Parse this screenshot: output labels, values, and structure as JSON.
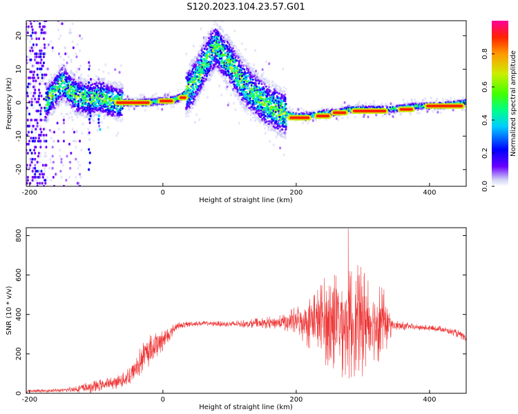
{
  "title": "S120.2023.104.23.57.G01",
  "chart_data": [
    {
      "type": "heatmap",
      "xlabel": "Height of straight line (km)",
      "ylabel": "Frequency (Hz)",
      "xlim": [
        -205,
        455
      ],
      "ylim": [
        -25,
        24.5
      ],
      "xticks": [
        -200,
        0,
        200,
        400
      ],
      "yticks": [
        -20,
        -10,
        0,
        10,
        20
      ],
      "colorbar": {
        "label": "Normalized spectral amplitude",
        "range": [
          0,
          1
        ],
        "ticks": [
          0.0,
          0.2,
          0.4,
          0.6,
          0.8
        ],
        "colors": [
          "#cfd2f4",
          "#6a00ff",
          "#0000ff",
          "#00ccff",
          "#00ff88",
          "#44ff00",
          "#ccee00",
          "#ff9900",
          "#ff2200",
          "#ff0099"
        ]
      },
      "ridge": {
        "x": [
          -175,
          -150,
          -130,
          -110,
          -95,
          -80,
          -60,
          -30,
          0,
          20,
          30,
          40,
          50,
          60,
          70,
          80,
          90,
          100,
          110,
          120,
          130,
          140,
          160,
          180,
          200,
          220,
          240,
          260,
          280,
          300,
          320,
          340,
          360,
          380,
          400,
          420,
          455
        ],
        "y": [
          0,
          6,
          2,
          1,
          2,
          0.5,
          0,
          0,
          0.5,
          1,
          2,
          4,
          7,
          11,
          14,
          17,
          14,
          12,
          9,
          6,
          4,
          2,
          -1,
          -3,
          -4,
          -4,
          -3,
          -3,
          -2,
          -2,
          -2,
          -2,
          -1.5,
          -1,
          -1,
          -0.8,
          0
        ]
      },
      "hot_segments": [
        {
          "x": [
            -70,
            -20
          ],
          "y": 0
        },
        {
          "x": [
            -5,
            15
          ],
          "y": 0.5
        },
        {
          "x": [
            25,
            35
          ],
          "y": 1.5
        },
        {
          "x": [
            190,
            220
          ],
          "y": -4.5
        },
        {
          "x": [
            230,
            250
          ],
          "y": -4
        },
        {
          "x": [
            255,
            275
          ],
          "y": -3
        },
        {
          "x": [
            285,
            335
          ],
          "y": -2.5
        },
        {
          "x": [
            355,
            375
          ],
          "y": -2
        },
        {
          "x": [
            395,
            450
          ],
          "y": -1
        }
      ]
    },
    {
      "type": "line",
      "xlabel": "Height of straight line (km)",
      "ylabel": "SNR (10 * v/v)",
      "xlim": [
        -205,
        455
      ],
      "ylim": [
        0,
        840
      ],
      "xticks": [
        -200,
        0,
        200,
        400
      ],
      "yticks": [
        0,
        200,
        400,
        600,
        800
      ],
      "color": "#ee3333",
      "envelope": {
        "x": [
          -205,
          -150,
          -110,
          -80,
          -60,
          -50,
          -40,
          -30,
          -20,
          -10,
          0,
          10,
          20,
          40,
          60,
          100,
          140,
          180,
          200,
          220,
          240,
          260,
          280,
          300,
          320,
          335,
          345,
          380,
          420,
          445,
          455
        ],
        "base": [
          10,
          15,
          30,
          50,
          65,
          90,
          130,
          180,
          220,
          250,
          270,
          300,
          340,
          352,
          355,
          350,
          355,
          360,
          365,
          370,
          370,
          365,
          360,
          365,
          370,
          360,
          345,
          335,
          325,
          300,
          270
        ],
        "noise": [
          8,
          10,
          30,
          30,
          40,
          60,
          70,
          80,
          80,
          70,
          60,
          40,
          20,
          15,
          12,
          15,
          25,
          40,
          80,
          150,
          220,
          280,
          300,
          280,
          230,
          150,
          30,
          15,
          15,
          20,
          20
        ]
      },
      "peak": {
        "x": 278,
        "y": 835
      }
    }
  ]
}
